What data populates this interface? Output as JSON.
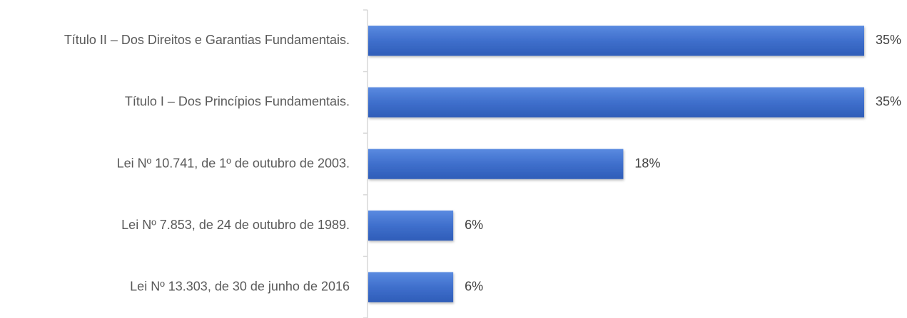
{
  "chart_data": {
    "type": "bar",
    "orientation": "horizontal",
    "categories": [
      "Título II – Dos Direitos e Garantias Fundamentais.",
      "Título I – Dos Princípios Fundamentais.",
      "Lei Nº 10.741, de 1º de outubro de 2003.",
      "Lei Nº 7.853, de 24 de outubro de 1989.",
      "Lei Nº 13.303, de 30 de junho de 2016"
    ],
    "values": [
      35,
      35,
      18,
      6,
      6
    ],
    "value_labels": [
      "35%",
      "35%",
      "18%",
      "6%",
      "6%"
    ],
    "xlim": [
      0,
      35
    ],
    "title": "",
    "xlabel": "",
    "ylabel": "",
    "grid": false,
    "legend": "none",
    "bar_color": "#4472c4"
  }
}
